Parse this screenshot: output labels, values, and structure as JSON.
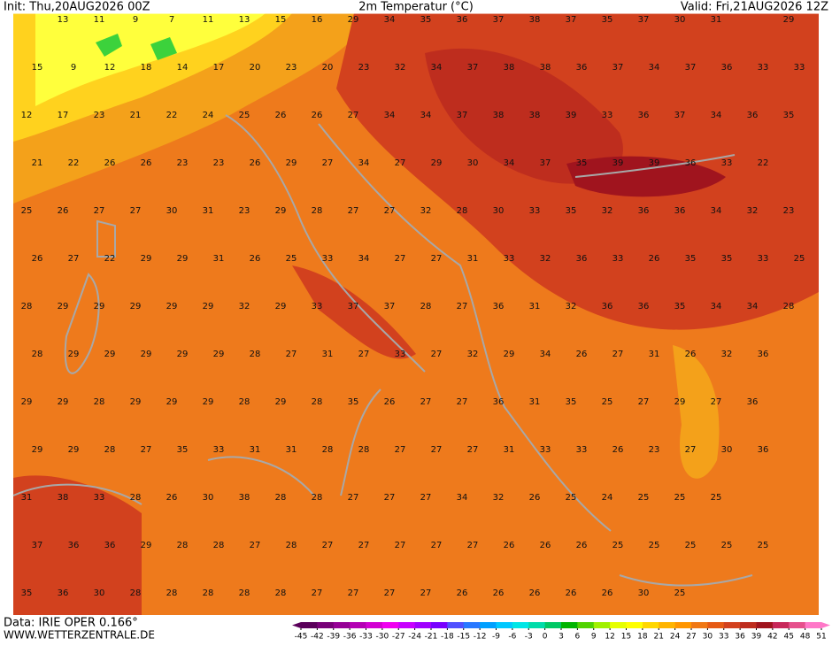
{
  "header": {
    "init": "Init: Thu,20AUG2026 00Z",
    "title": "2m Temperatur (°C)",
    "valid": "Valid: Fri,21AUG2026 12Z"
  },
  "footer": {
    "data_source": "Data: IRIE OPER 0.166°",
    "site": "WWW.WETTERZENTRALE.DE"
  },
  "map": {
    "temperatures": [
      [
        null,
        13,
        11,
        9,
        7,
        11,
        13,
        15,
        16,
        29,
        34,
        35,
        36,
        37,
        38,
        37,
        35,
        37,
        30,
        31,
        null,
        29
      ],
      [
        15,
        9,
        12,
        18,
        14,
        17,
        20,
        23,
        20,
        23,
        32,
        34,
        37,
        38,
        38,
        36,
        37,
        34,
        37,
        36,
        33,
        33
      ],
      [
        12,
        17,
        23,
        21,
        22,
        24,
        25,
        26,
        26,
        27,
        34,
        34,
        37,
        38,
        38,
        39,
        33,
        36,
        37,
        34,
        36,
        35
      ],
      [
        21,
        22,
        26,
        26,
        23,
        23,
        26,
        29,
        27,
        34,
        27,
        29,
        30,
        34,
        37,
        35,
        39,
        39,
        36,
        33,
        22,
        null
      ],
      [
        25,
        26,
        27,
        27,
        30,
        31,
        23,
        29,
        28,
        27,
        27,
        32,
        28,
        30,
        33,
        35,
        32,
        36,
        36,
        34,
        32,
        23
      ],
      [
        26,
        27,
        22,
        29,
        29,
        31,
        26,
        25,
        33,
        34,
        27,
        27,
        31,
        33,
        32,
        36,
        33,
        26,
        35,
        35,
        33,
        25
      ],
      [
        28,
        29,
        29,
        29,
        29,
        29,
        32,
        29,
        33,
        37,
        37,
        28,
        27,
        36,
        31,
        32,
        36,
        36,
        35,
        34,
        34,
        28
      ],
      [
        28,
        29,
        29,
        29,
        29,
        29,
        28,
        27,
        31,
        27,
        33,
        27,
        32,
        29,
        34,
        26,
        27,
        31,
        26,
        32,
        36,
        null
      ],
      [
        29,
        29,
        28,
        29,
        29,
        29,
        28,
        29,
        28,
        35,
        26,
        27,
        27,
        36,
        31,
        35,
        25,
        27,
        29,
        27,
        36,
        null
      ],
      [
        29,
        29,
        28,
        27,
        35,
        33,
        31,
        31,
        28,
        28,
        27,
        27,
        27,
        31,
        33,
        33,
        26,
        23,
        27,
        30,
        36,
        null
      ],
      [
        31,
        38,
        33,
        28,
        26,
        30,
        38,
        28,
        28,
        27,
        27,
        27,
        34,
        32,
        26,
        25,
        24,
        25,
        25,
        25,
        null,
        null
      ],
      [
        37,
        36,
        36,
        29,
        28,
        28,
        27,
        28,
        27,
        27,
        27,
        27,
        27,
        26,
        26,
        26,
        25,
        25,
        25,
        25,
        25,
        null
      ],
      [
        35,
        36,
        30,
        28,
        28,
        28,
        28,
        28,
        27,
        27,
        27,
        27,
        26,
        26,
        26,
        26,
        26,
        30,
        25,
        null,
        null,
        null
      ]
    ]
  },
  "colorbar": {
    "ticks": [
      -45,
      -42,
      -39,
      -36,
      -33,
      -30,
      -27,
      -24,
      -21,
      -18,
      -15,
      -12,
      -9,
      -6,
      -3,
      0,
      3,
      6,
      9,
      12,
      15,
      18,
      21,
      24,
      27,
      30,
      33,
      36,
      39,
      42,
      45,
      48,
      51
    ],
    "colors": [
      "#5a005a",
      "#780078",
      "#960096",
      "#b400b4",
      "#d200d2",
      "#f000f0",
      "#c800ff",
      "#a000ff",
      "#7800ff",
      "#5050ff",
      "#2878ff",
      "#00a0ff",
      "#00c8ff",
      "#00e6e6",
      "#00dcaa",
      "#00c864",
      "#00b400",
      "#50d200",
      "#a0f000",
      "#e6ff00",
      "#ffff00",
      "#ffd700",
      "#ffb400",
      "#ff9600",
      "#f07814",
      "#e65a14",
      "#d2411e",
      "#be2d1e",
      "#a0141e",
      "#c8285a",
      "#e6508c",
      "#ff78c8"
    ]
  }
}
